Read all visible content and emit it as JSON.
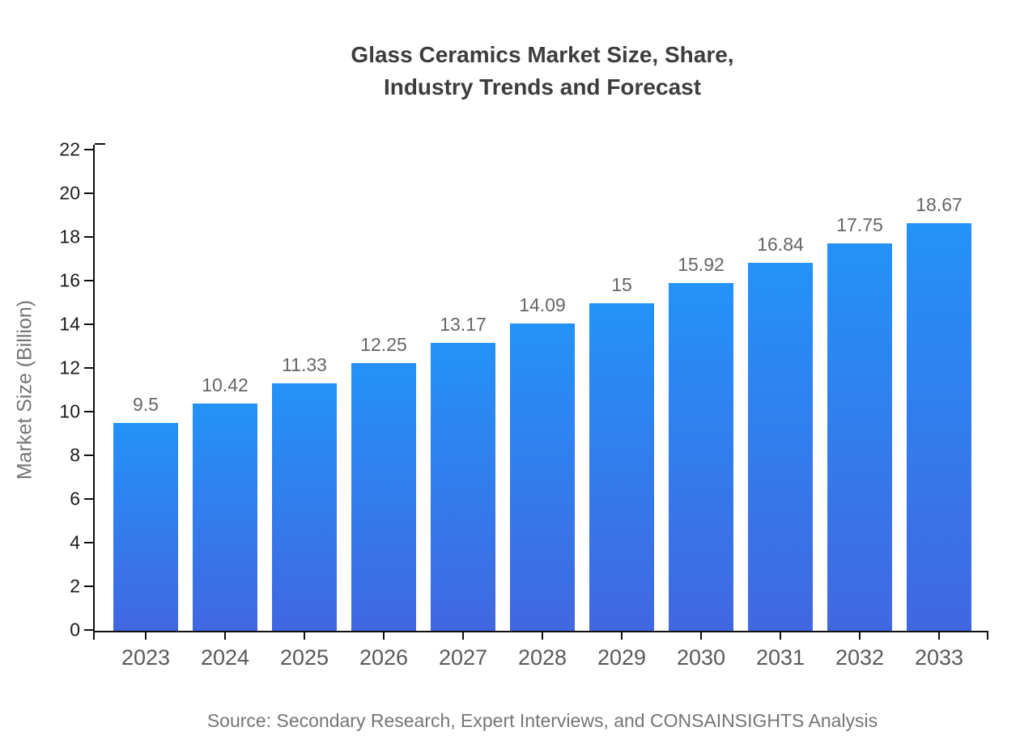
{
  "title": {
    "line1": "Glass Ceramics Market Size, Share,",
    "line2": "Industry Trends and Forecast"
  },
  "source": "Source: Secondary Research, Expert Interviews, and CONSAINSIGHTS Analysis",
  "chart_data": {
    "type": "bar",
    "title": "Glass Ceramics Market Size, Share, Industry Trends and Forecast",
    "categories": [
      "2023",
      "2024",
      "2025",
      "2026",
      "2027",
      "2028",
      "2029",
      "2030",
      "2031",
      "2032",
      "2033"
    ],
    "values": [
      9.5,
      10.42,
      11.33,
      12.25,
      13.17,
      14.09,
      15,
      15.92,
      16.84,
      17.75,
      18.67
    ],
    "xlabel": "",
    "ylabel": "Market Size (Billion)",
    "ylim": [
      0,
      22
    ],
    "ytick_step": 2,
    "yticks": [
      0,
      2,
      4,
      6,
      8,
      10,
      12,
      14,
      16,
      18,
      20,
      22
    ],
    "grid": false,
    "legend": "none",
    "value_labels_shown": true,
    "bar_gradient_top": "#2492f9",
    "bar_gradient_bottom": "#4167e0"
  },
  "colors": {
    "axis": "#0f0f0f",
    "title_text": "#3d3d3d",
    "value_label_text": "#666666",
    "x_label_text": "#595959",
    "y_label_text": "#1c1c1c",
    "muted_text": "#757575",
    "background": "#ffffff"
  }
}
